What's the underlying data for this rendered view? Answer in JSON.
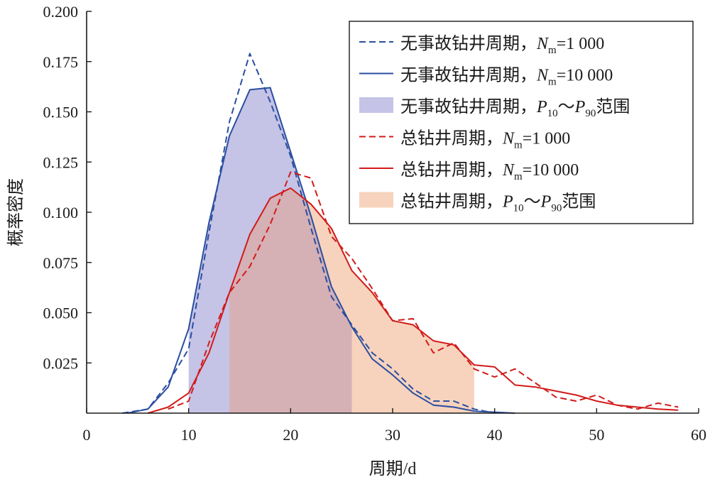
{
  "chart_data": {
    "type": "line",
    "xlabel": "周期/d",
    "ylabel": "概率密度",
    "xlim": [
      0,
      60
    ],
    "ylim": [
      0,
      0.2
    ],
    "x_ticks": [
      "0",
      "10",
      "20",
      "30",
      "40",
      "50",
      "60"
    ],
    "y_ticks": [
      "0.025",
      "0.050",
      "0.075",
      "0.100",
      "0.125",
      "0.150",
      "0.175",
      "0.200"
    ],
    "grid": false,
    "legend_position": "top-right",
    "colors": {
      "no_accident": "#2a4ea0",
      "no_accident_band": "#c5c3e6",
      "total": "#d11b1b",
      "total_band": "#f7d3bd",
      "overlap_band": "#d5b0b5"
    },
    "legend": [
      {
        "label": "无事故钻井周期，",
        "math": "N",
        "sub": "m",
        "suffix": "=1 000",
        "style": "dashed",
        "color_key": "no_accident"
      },
      {
        "label": "无事故钻井周期，",
        "math": "N",
        "sub": "m",
        "suffix": "=10 000",
        "style": "solid",
        "color_key": "no_accident"
      },
      {
        "label": "无事故钻井周期，",
        "math": "P",
        "sub": "10",
        "tilde": "～",
        "math2": "P",
        "sub2": "90",
        "suffix": "范围",
        "style": "band",
        "color_key": "no_accident_band"
      },
      {
        "label": "总钻井周期，",
        "math": "N",
        "sub": "m",
        "suffix": "=1 000",
        "style": "dashed",
        "color_key": "total"
      },
      {
        "label": "总钻井周期，",
        "math": "N",
        "sub": "m",
        "suffix": "=10 000",
        "style": "solid",
        "color_key": "total"
      },
      {
        "label": "总钻井周期，",
        "math": "P",
        "sub": "10",
        "tilde": "～",
        "math2": "P",
        "sub2": "90",
        "suffix": "范围",
        "style": "band",
        "color_key": "total_band"
      }
    ],
    "bands": [
      {
        "series": "no_accident",
        "x_range": [
          10,
          26
        ]
      },
      {
        "series": "total",
        "x_range": [
          14,
          38
        ]
      }
    ],
    "series": [
      {
        "key": "no_accident_1000",
        "color_key": "no_accident",
        "style": "dashed",
        "x": [
          3.5,
          6,
          8,
          10,
          12,
          14,
          16,
          18,
          20,
          22,
          24,
          26,
          28,
          30,
          32,
          34,
          36,
          38,
          40
        ],
        "y": [
          0.0,
          0.002,
          0.015,
          0.032,
          0.09,
          0.145,
          0.179,
          0.155,
          0.128,
          0.092,
          0.058,
          0.044,
          0.03,
          0.022,
          0.012,
          0.006,
          0.006,
          0.002,
          0.0
        ]
      },
      {
        "key": "no_accident_10000",
        "color_key": "no_accident",
        "style": "solid",
        "x": [
          4,
          6,
          8,
          10,
          12,
          14,
          16,
          18,
          20,
          22,
          24,
          26,
          28,
          30,
          32,
          34,
          36,
          38,
          40,
          42
        ],
        "y": [
          0.0,
          0.002,
          0.013,
          0.042,
          0.095,
          0.138,
          0.161,
          0.162,
          0.13,
          0.098,
          0.063,
          0.043,
          0.027,
          0.019,
          0.01,
          0.004,
          0.003,
          0.001,
          0.0005,
          0.0
        ]
      },
      {
        "key": "total_1000",
        "color_key": "total",
        "style": "dashed",
        "x": [
          8,
          10,
          12,
          14,
          16,
          18,
          20,
          22,
          24,
          26,
          28,
          30,
          32,
          34,
          36,
          38,
          40,
          42,
          44,
          46,
          48,
          50,
          52,
          54,
          56,
          58
        ],
        "y": [
          0.002,
          0.006,
          0.035,
          0.06,
          0.073,
          0.094,
          0.12,
          0.117,
          0.088,
          0.077,
          0.062,
          0.046,
          0.047,
          0.03,
          0.035,
          0.022,
          0.018,
          0.022,
          0.015,
          0.008,
          0.006,
          0.009,
          0.004,
          0.002,
          0.005,
          0.003
        ]
      },
      {
        "key": "total_10000",
        "color_key": "total",
        "style": "solid",
        "x": [
          6,
          8,
          10,
          12,
          14,
          16,
          18,
          20,
          22,
          24,
          26,
          28,
          30,
          32,
          34,
          36,
          38,
          40,
          42,
          44,
          46,
          48,
          50,
          52,
          54,
          56,
          58
        ],
        "y": [
          0.0,
          0.003,
          0.01,
          0.03,
          0.06,
          0.089,
          0.107,
          0.112,
          0.104,
          0.092,
          0.071,
          0.06,
          0.046,
          0.044,
          0.036,
          0.034,
          0.024,
          0.023,
          0.014,
          0.013,
          0.011,
          0.009,
          0.006,
          0.004,
          0.003,
          0.002,
          0.0015
        ]
      }
    ]
  }
}
